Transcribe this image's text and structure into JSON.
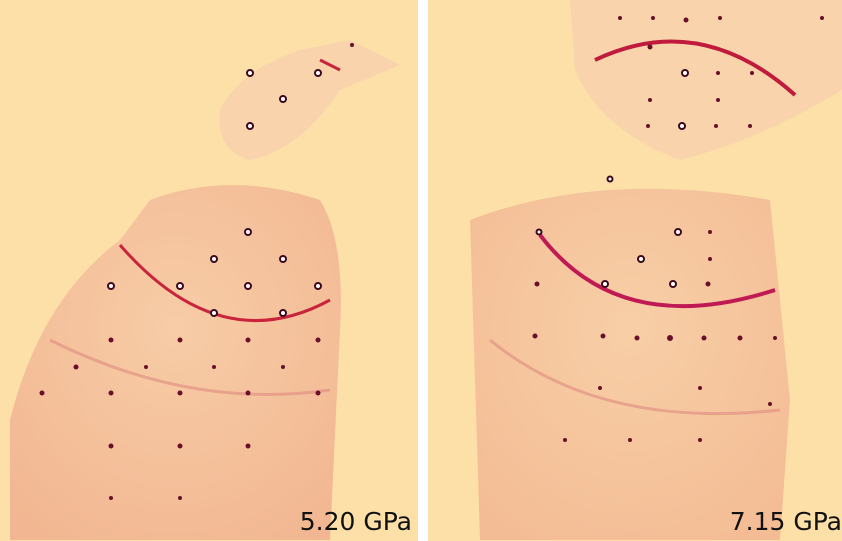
{
  "panels": [
    {
      "label": "5.20 GPa"
    },
    {
      "label": "7.15 GPa"
    }
  ]
}
